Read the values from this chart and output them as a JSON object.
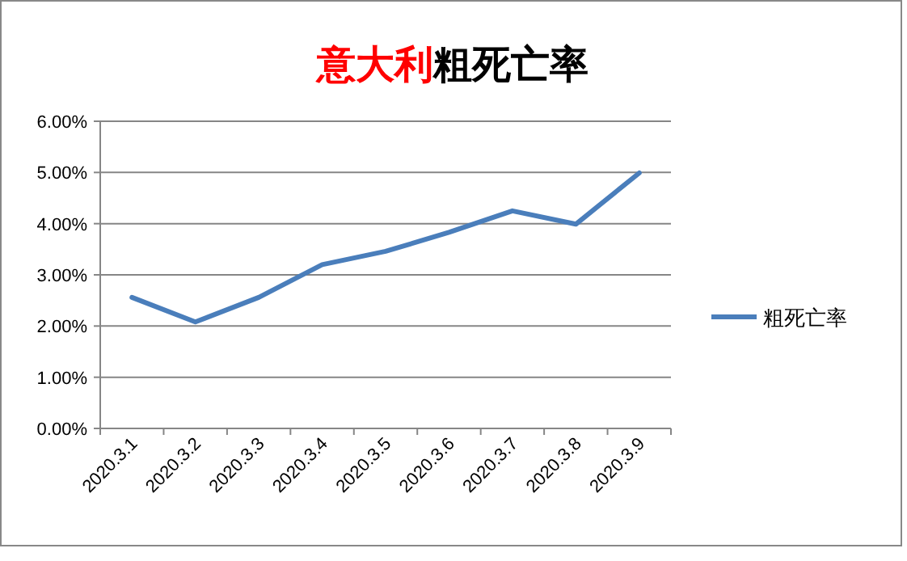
{
  "chart_data": {
    "type": "line",
    "title": "意大利粗死亡率",
    "categories": [
      "2020.3.1",
      "2020.3.2",
      "2020.3.3",
      "2020.3.4",
      "2020.3.5",
      "2020.3.6",
      "2020.3.7",
      "2020.3.8",
      "2020.3.9"
    ],
    "series": [
      {
        "name": "粗死亡率",
        "color": "#4a7ebb",
        "values": [
          2.56,
          2.08,
          2.56,
          3.2,
          3.46,
          3.83,
          4.25,
          3.99,
          4.99
        ]
      }
    ],
    "ylim": [
      0,
      6
    ],
    "yticks": [
      {
        "value": 0,
        "label": "0.00%"
      },
      {
        "value": 1,
        "label": "1.00%"
      },
      {
        "value": 2,
        "label": "2.00%"
      },
      {
        "value": 3,
        "label": "3.00%"
      },
      {
        "value": 4,
        "label": "4.00%"
      },
      {
        "value": 5,
        "label": "5.00%"
      },
      {
        "value": 6,
        "label": "6.00%"
      }
    ],
    "grid": "y",
    "legend": "right",
    "marker": "none",
    "line_style": "solid"
  }
}
